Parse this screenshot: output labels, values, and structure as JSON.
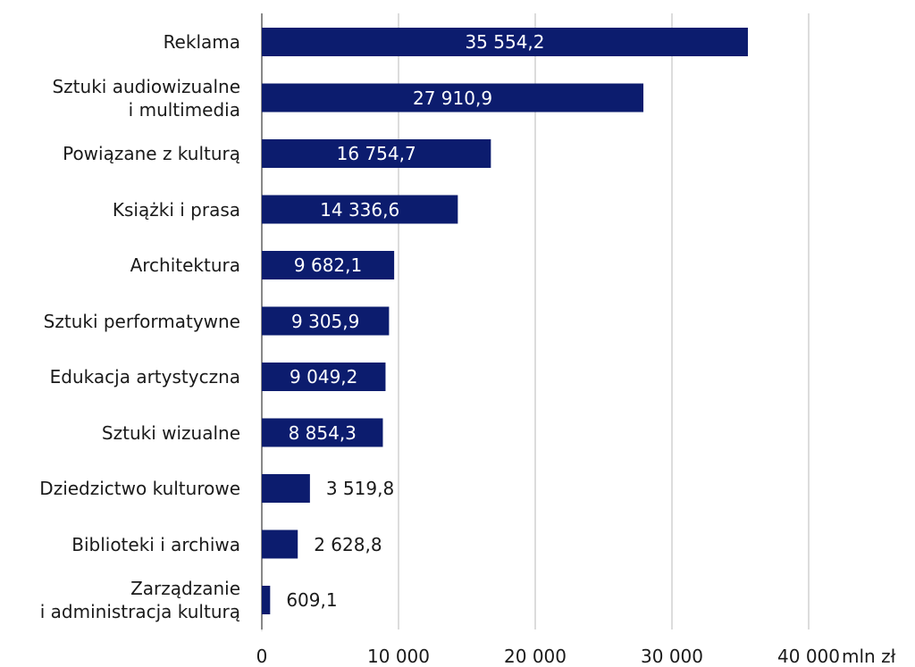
{
  "chart_data": {
    "type": "bar",
    "orientation": "horizontal",
    "categories": [
      "Reklama",
      "Sztuki audiowizualne\ni multimedia",
      "Powiązane z kulturą",
      "Książki i prasa",
      "Architektura",
      "Sztuki performatywne",
      "Edukacja artystyczna",
      "Sztuki wizualne",
      "Dziedzictwo kulturowe",
      "Biblioteki i archiwa",
      "Zarządzanie\ni administracja kulturą"
    ],
    "values": [
      35554.2,
      27910.9,
      16754.7,
      14336.6,
      9682.1,
      9305.9,
      9049.2,
      8854.3,
      3519.8,
      2628.8,
      609.1
    ],
    "value_labels": [
      "35 554,2",
      "27 910,9",
      "16 754,7",
      "14 336,6",
      "9 682,1",
      "9 305,9",
      "9 049,2",
      "8 854,3",
      "3 519,8",
      "2 628,8",
      "609,1"
    ],
    "color": "#0c1c6e",
    "xlim": [
      0,
      40000
    ],
    "xticks": [
      0,
      {
        "value": 10000,
        "label": "10 000"
      },
      {
        "value": 20000,
        "label": "20 000"
      },
      {
        "value": 30000,
        "label": "30 000"
      },
      {
        "value": 40000,
        "label": "40 000"
      }
    ],
    "x_unit": "mln zł",
    "grid": true
  }
}
